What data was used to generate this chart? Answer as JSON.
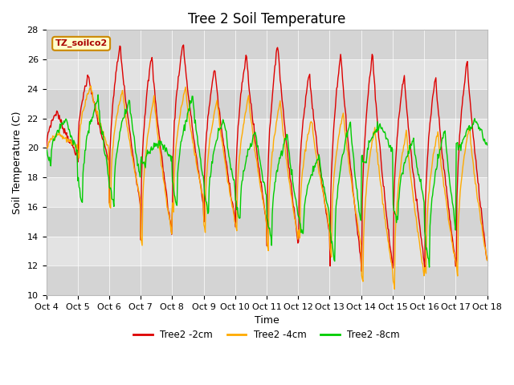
{
  "title": "Tree 2 Soil Temperature",
  "xlabel": "Time",
  "ylabel": "Soil Temperature (C)",
  "ylim": [
    10,
    28
  ],
  "x_tick_labels": [
    "Oct 4",
    "Oct 5",
    "Oct 6",
    "Oct 7",
    "Oct 8",
    "Oct 9",
    "Oct 10",
    "Oct 11",
    "Oct 12",
    "Oct 13",
    "Oct 14",
    "Oct 15",
    "Oct 16",
    "Oct 17",
    "Oct 18"
  ],
  "legend_label": "TZ_soilco2",
  "series_labels": [
    "Tree2 -2cm",
    "Tree2 -4cm",
    "Tree2 -8cm"
  ],
  "series_colors": [
    "#dd0000",
    "#ffaa00",
    "#00cc00"
  ],
  "bg_inner_color": "#e8e8e8",
  "bg_outer_color": "#ffffff",
  "title_fontsize": 12,
  "label_fontsize": 9,
  "tick_fontsize": 8,
  "legend_box_color": "#ffffcc",
  "legend_box_edge": "#cc8800",
  "red_peaks": [
    22.5,
    25.0,
    27.0,
    26.3,
    27.2,
    25.5,
    26.4,
    27.1,
    25.1,
    26.5,
    26.5,
    25.1,
    24.9,
    26.0
  ],
  "orange_peaks": [
    21.0,
    24.2,
    24.0,
    23.5,
    24.1,
    23.3,
    23.5,
    23.2,
    22.0,
    22.5,
    21.5,
    21.2,
    21.2,
    21.5
  ],
  "green_peaks": [
    22.0,
    23.3,
    23.2,
    20.5,
    23.4,
    22.0,
    21.2,
    21.0,
    19.5,
    21.8,
    21.6,
    20.6,
    21.2,
    21.8
  ],
  "red_troughs": [
    19.5,
    19.0,
    16.0,
    13.9,
    15.9,
    15.0,
    14.8,
    13.3,
    14.0,
    12.0,
    11.5,
    12.0,
    11.8,
    12.0
  ],
  "orange_troughs": [
    20.0,
    19.5,
    15.9,
    13.3,
    15.8,
    14.3,
    14.3,
    13.1,
    14.0,
    12.6,
    10.8,
    10.5,
    11.4,
    11.5
  ],
  "green_troughs": [
    19.0,
    16.2,
    16.0,
    18.8,
    16.0,
    15.5,
    15.0,
    13.5,
    14.0,
    12.2,
    18.9,
    14.8,
    12.0,
    19.8
  ],
  "peak_hour": 0.5,
  "red_phase_hr": 0.0,
  "orange_phase_hr": 1.0,
  "green_phase_hr": 3.5
}
